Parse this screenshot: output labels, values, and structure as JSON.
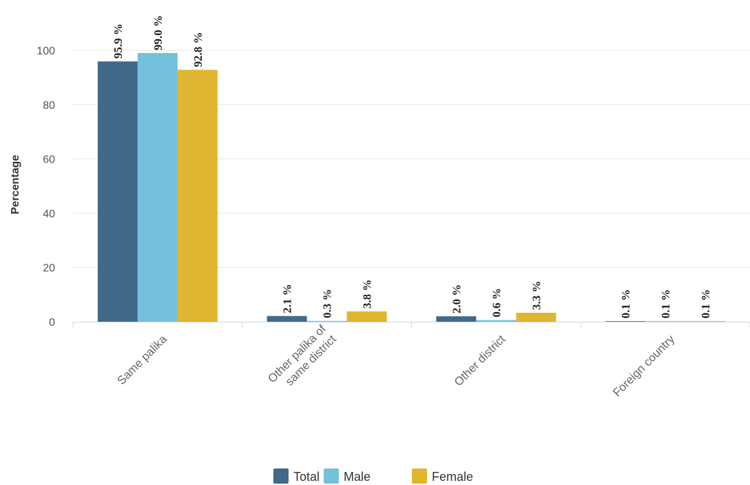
{
  "chart_data": {
    "type": "bar",
    "title": "",
    "xlabel": "",
    "ylabel": "Percentage",
    "ylim": [
      0,
      100
    ],
    "yticks": [
      0,
      20,
      40,
      60,
      80,
      100
    ],
    "grid": true,
    "legend_position": "bottom-center",
    "categories": [
      "Same palika",
      "Other palika of same district",
      "Other district",
      "Foreign country"
    ],
    "category_label_lines": [
      [
        "Same palika"
      ],
      [
        "Other palika of",
        "same district"
      ],
      [
        "Other district"
      ],
      [
        "Foreign country"
      ]
    ],
    "series": [
      {
        "name": "Total",
        "color": "#41698a",
        "values": [
          95.9,
          2.1,
          2.0,
          0.1
        ],
        "labels": [
          "95.9 %",
          "2.1 %",
          "2.0 %",
          "0.1 %"
        ]
      },
      {
        "name": "Male",
        "color": "#74c1dc",
        "values": [
          99.0,
          0.3,
          0.6,
          0.1
        ],
        "labels": [
          "99.0 %",
          "0.3 %",
          "0.6 %",
          "0.1 %"
        ]
      },
      {
        "name": "Female",
        "color": "#e0b52f",
        "values": [
          92.8,
          3.8,
          3.3,
          0.1
        ],
        "labels": [
          "92.8 %",
          "3.8 %",
          "3.3 %",
          "0.1 %"
        ]
      }
    ]
  }
}
